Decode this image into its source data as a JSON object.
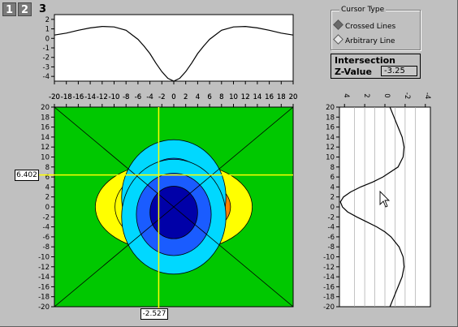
{
  "tabs": [
    {
      "label": "1"
    },
    {
      "label": "2"
    }
  ],
  "frame_number": "3",
  "cursor_type": {
    "title": "Cursor Type",
    "options": [
      {
        "label": "Crossed Lines",
        "selected": true
      },
      {
        "label": "Arbitrary Line",
        "selected": false
      }
    ]
  },
  "intersection": {
    "title": "Intersection",
    "zvalue_label": "Z-Value",
    "zvalue": "-3.25"
  },
  "cursor": {
    "x_readout": "-2.527",
    "y_readout": "6.402"
  },
  "colors": {
    "background": "#c0c0c0",
    "cursor_line": "#ffff00",
    "contour_negative": [
      "#0000a8",
      "#1a5cff",
      "#00d8ff"
    ],
    "contour_zero": "#00c800",
    "contour_positive": [
      "#ffff00",
      "#ff8000",
      "#ff0000"
    ]
  },
  "chart_data": [
    {
      "type": "line",
      "title": "",
      "xlabel": "",
      "ylabel": "",
      "x_ticks": [
        -20,
        -18,
        -16,
        -14,
        -12,
        -10,
        -8,
        -6,
        -4,
        -2,
        0,
        2,
        4,
        6,
        8,
        10,
        12,
        14,
        16,
        18,
        20
      ],
      "y_ticks": [
        2,
        1,
        0,
        -1,
        -2,
        -3,
        -4
      ],
      "xlim": [
        -20,
        20
      ],
      "ylim": [
        -4.5,
        2.5
      ],
      "series": [
        {
          "x": [
            -20,
            -18,
            -16,
            -14,
            -12,
            -10,
            -8,
            -6,
            -5,
            -4,
            -3,
            -2,
            -1,
            0,
            1,
            2,
            3,
            4,
            5,
            6,
            8,
            10,
            12,
            14,
            16,
            18,
            20
          ],
          "values": [
            0.35,
            0.55,
            0.85,
            1.1,
            1.25,
            1.2,
            0.85,
            -0.1,
            -0.8,
            -1.6,
            -2.6,
            -3.5,
            -4.2,
            -4.5,
            -4.2,
            -3.5,
            -2.6,
            -1.6,
            -0.8,
            -0.1,
            0.85,
            1.2,
            1.25,
            1.1,
            0.85,
            0.55,
            0.35
          ]
        }
      ]
    },
    {
      "type": "heatmap",
      "title": "",
      "xlabel": "",
      "ylabel": "",
      "x_ticks": [
        -20,
        -18,
        -16,
        -14,
        -12,
        -10,
        -8,
        -6,
        -4,
        -2,
        0,
        2,
        4,
        6,
        8,
        10,
        12,
        14,
        16,
        18,
        20
      ],
      "y_ticks": [
        20,
        18,
        16,
        14,
        12,
        10,
        8,
        6,
        4,
        2,
        0,
        -2,
        -4,
        -6,
        -8,
        -10,
        -12,
        -14,
        -16,
        -18,
        -20
      ],
      "xlim": [
        -20,
        20
      ],
      "ylim": [
        -20,
        20
      ]
    },
    {
      "type": "line",
      "title": "",
      "xlabel": "",
      "ylabel": "",
      "x_ticks": [
        4,
        2,
        0,
        -2,
        -4
      ],
      "y_ticks": [
        20,
        18,
        16,
        14,
        12,
        10,
        8,
        6,
        4,
        2,
        0,
        -2,
        -4,
        -6,
        -8,
        -10,
        -12,
        -14,
        -16,
        -18,
        -20
      ],
      "xlim": [
        4.5,
        -4.5
      ],
      "ylim": [
        -20,
        20
      ],
      "series": [
        {
          "y": [
            20,
            18,
            16,
            14,
            12,
            10,
            8,
            6,
            5,
            4,
            3,
            2,
            1,
            0,
            -1,
            -2,
            -3,
            -4,
            -5,
            -6,
            -8,
            -10,
            -12,
            -14,
            -16,
            -18,
            -20
          ],
          "values": [
            -0.5,
            -0.9,
            -1.3,
            -1.7,
            -1.9,
            -1.8,
            -1.3,
            0.2,
            1.2,
            2.4,
            3.4,
            4.1,
            4.4,
            4.2,
            3.7,
            2.8,
            1.8,
            0.8,
            0,
            -0.6,
            -1.4,
            -1.8,
            -1.9,
            -1.7,
            -1.3,
            -0.9,
            -0.5
          ]
        }
      ]
    }
  ]
}
